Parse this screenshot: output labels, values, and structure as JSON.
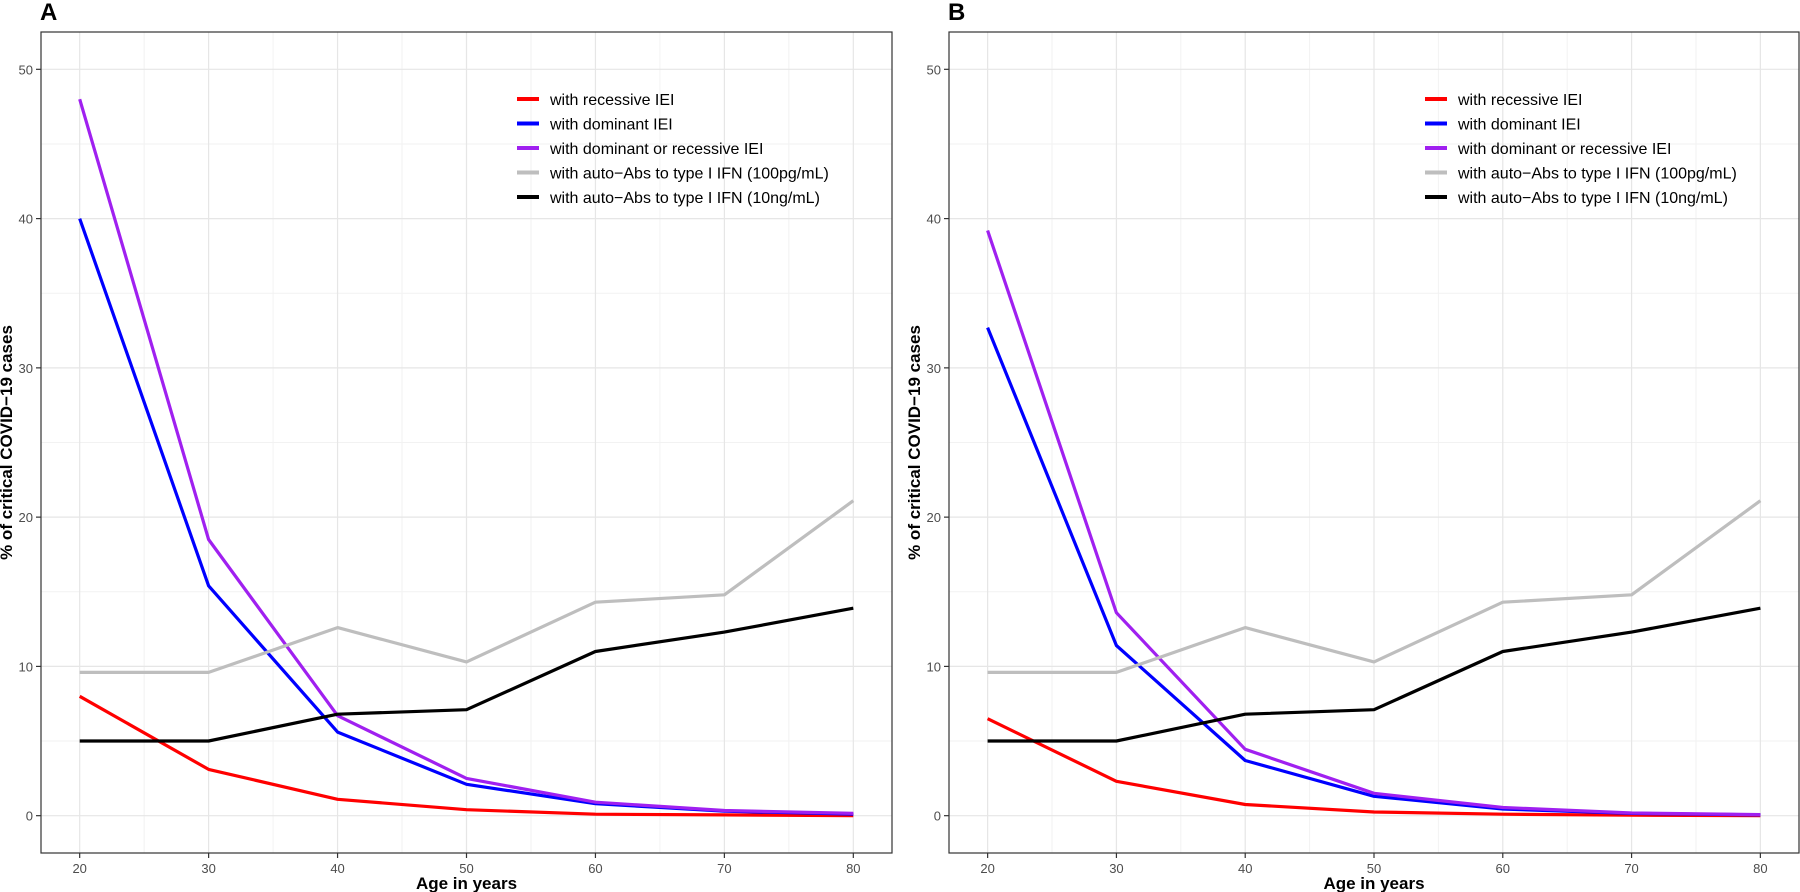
{
  "chart_data": [
    {
      "type": "line",
      "panel": "A",
      "title": "",
      "xlabel": "Age in years",
      "ylabel": "% of critical COVID−19 cases",
      "xlim": [
        17,
        83
      ],
      "ylim": [
        -2.5,
        52.5
      ],
      "xticks": [
        20,
        30,
        40,
        50,
        60,
        70,
        80
      ],
      "yticks": [
        0,
        10,
        20,
        30,
        40,
        50
      ],
      "grid": true,
      "legend_position": "top-right",
      "x": [
        20,
        30,
        40,
        50,
        60,
        70,
        80
      ],
      "series": [
        {
          "name": "with recessive IEI",
          "color": "#ff0000",
          "values": [
            8.0,
            3.1,
            1.1,
            0.4,
            0.1,
            0.05,
            0.0
          ]
        },
        {
          "name": "with dominant IEI",
          "color": "#0000ff",
          "values": [
            40.0,
            15.4,
            5.6,
            2.1,
            0.8,
            0.3,
            0.1
          ]
        },
        {
          "name": "with dominant or recessive IEI",
          "color": "#a020f0",
          "values": [
            48.0,
            18.5,
            6.7,
            2.5,
            0.9,
            0.35,
            0.15
          ]
        },
        {
          "name": "with auto−Abs to type I IFN (100pg/mL)",
          "color": "#bebebe",
          "values": [
            9.6,
            9.6,
            12.6,
            10.3,
            14.3,
            14.8,
            21.1
          ]
        },
        {
          "name": "with auto−Abs to type I IFN (10ng/mL)",
          "color": "#000000",
          "values": [
            5.0,
            5.0,
            6.8,
            7.1,
            11.0,
            12.3,
            13.9
          ]
        }
      ]
    },
    {
      "type": "line",
      "panel": "B",
      "title": "",
      "xlabel": "Age in years",
      "ylabel": "% of critical COVID−19 cases",
      "xlim": [
        17,
        83
      ],
      "ylim": [
        -2.5,
        52.5
      ],
      "xticks": [
        20,
        30,
        40,
        50,
        60,
        70,
        80
      ],
      "yticks": [
        0,
        10,
        20,
        30,
        40,
        50
      ],
      "grid": true,
      "legend_position": "top-right",
      "x": [
        20,
        30,
        40,
        50,
        60,
        70,
        80
      ],
      "series": [
        {
          "name": "with recessive IEI",
          "color": "#ff0000",
          "values": [
            6.5,
            2.3,
            0.75,
            0.25,
            0.1,
            0.03,
            0.0
          ]
        },
        {
          "name": "with dominant IEI",
          "color": "#0000ff",
          "values": [
            32.7,
            11.4,
            3.7,
            1.3,
            0.45,
            0.15,
            0.05
          ]
        },
        {
          "name": "with dominant or recessive IEI",
          "color": "#a020f0",
          "values": [
            39.2,
            13.6,
            4.45,
            1.5,
            0.55,
            0.18,
            0.07
          ]
        },
        {
          "name": "with auto−Abs to type I IFN (100pg/mL)",
          "color": "#bebebe",
          "values": [
            9.6,
            9.6,
            12.6,
            10.3,
            14.3,
            14.8,
            21.1
          ]
        },
        {
          "name": "with auto−Abs to type I IFN (10ng/mL)",
          "color": "#000000",
          "values": [
            5.0,
            5.0,
            6.8,
            7.1,
            11.0,
            12.3,
            13.9
          ]
        }
      ]
    }
  ]
}
